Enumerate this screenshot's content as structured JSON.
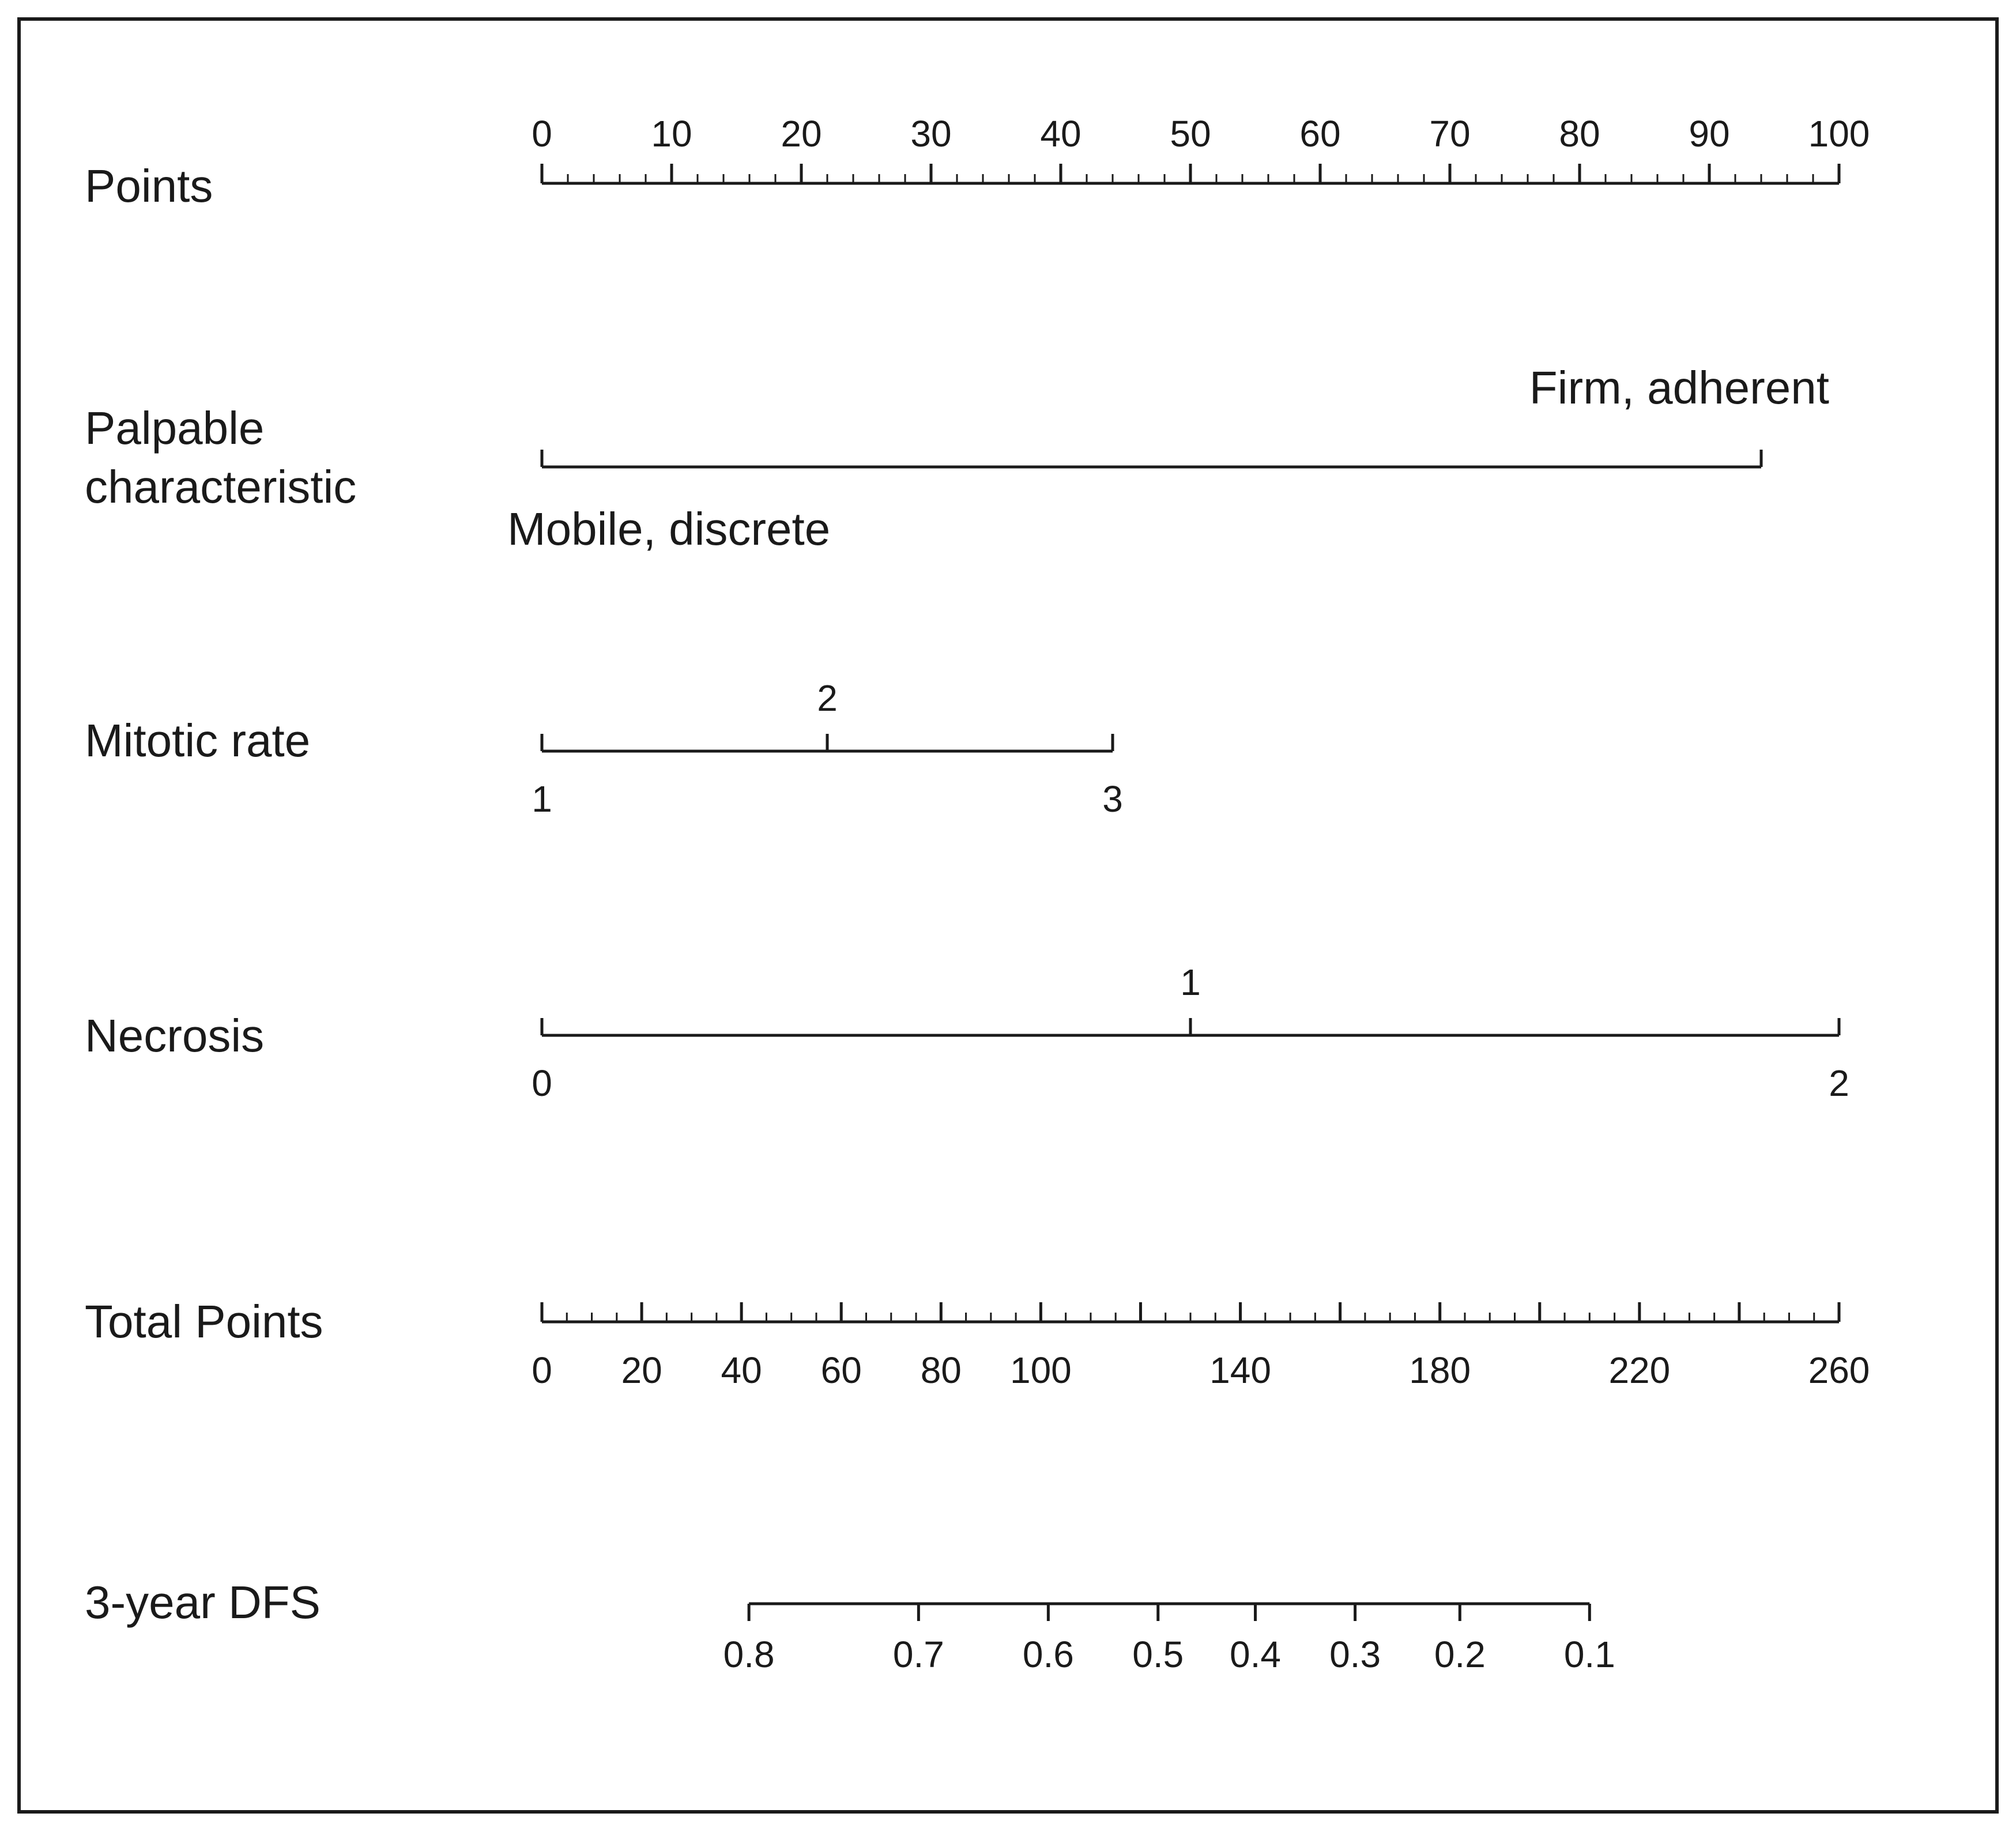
{
  "chart_data": {
    "type": "nomogram",
    "rows": [
      {
        "key": "points",
        "label_lines": [
          "Points"
        ],
        "kind": "scale",
        "labels_position": "above",
        "major_ticks": [
          0,
          10,
          20,
          30,
          40,
          50,
          60,
          70,
          80,
          90,
          100
        ],
        "minor_step": 2,
        "range": [
          0,
          100
        ]
      },
      {
        "key": "palpable",
        "label_lines": [
          "Palpable",
          "characteristic"
        ],
        "kind": "categorical",
        "levels": [
          {
            "label": "Mobile, discrete",
            "points": 0,
            "position": "below"
          },
          {
            "label": "Firm, adherent",
            "points": 94,
            "position": "above"
          }
        ]
      },
      {
        "key": "mitotic",
        "label_lines": [
          "Mitotic rate"
        ],
        "kind": "categorical",
        "levels": [
          {
            "label": "1",
            "points": 0,
            "position": "below"
          },
          {
            "label": "2",
            "points": 22,
            "position": "above"
          },
          {
            "label": "3",
            "points": 44,
            "position": "below"
          }
        ]
      },
      {
        "key": "necrosis",
        "label_lines": [
          "Necrosis"
        ],
        "kind": "categorical",
        "levels": [
          {
            "label": "0",
            "points": 0,
            "position": "below"
          },
          {
            "label": "1",
            "points": 50,
            "position": "above"
          },
          {
            "label": "2",
            "points": 100,
            "position": "below"
          }
        ]
      },
      {
        "key": "total",
        "label_lines": [
          "Total Points"
        ],
        "kind": "scale",
        "labels_position": "below",
        "major_ticks": [
          0,
          20,
          40,
          60,
          80,
          100,
          120,
          140,
          160,
          180,
          200,
          220,
          240,
          260
        ],
        "tick_labels": [
          "0",
          "20",
          "40",
          "60",
          "80",
          "100",
          "140",
          "180",
          "220",
          "260"
        ],
        "minor_step": 5,
        "range": [
          0,
          260
        ]
      },
      {
        "key": "dfs",
        "label_lines": [
          "3-year DFS"
        ],
        "kind": "probability",
        "labels_position": "below",
        "ticks": [
          {
            "label": "0.8",
            "total_points": 41.5
          },
          {
            "label": "0.7",
            "total_points": 75.5
          },
          {
            "label": "0.6",
            "total_points": 101.5
          },
          {
            "label": "0.5",
            "total_points": 123.5
          },
          {
            "label": "0.4",
            "total_points": 143
          },
          {
            "label": "0.3",
            "total_points": 163
          },
          {
            "label": "0.2",
            "total_points": 184
          },
          {
            "label": "0.1",
            "total_points": 210
          }
        ]
      }
    ]
  }
}
